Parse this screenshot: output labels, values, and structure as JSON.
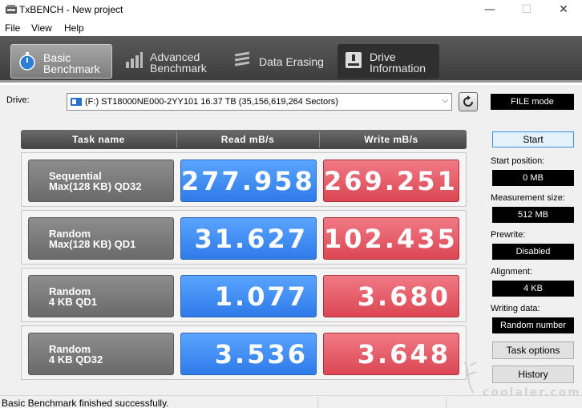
{
  "window": {
    "title": "TxBENCH - New project",
    "minimize": "—",
    "maximize": "☐",
    "close": "✕"
  },
  "menu": [
    "File",
    "View",
    "Help"
  ],
  "ribbon": {
    "tabs": [
      {
        "label": "Basic\nBenchmark",
        "icon": "stopwatch-icon",
        "active": true
      },
      {
        "label": "Advanced\nBenchmark",
        "icon": "bar-chart-icon",
        "active": false
      },
      {
        "label": "Data Erasing",
        "icon": "eraser-icon",
        "active": false
      },
      {
        "label": "Drive\nInformation",
        "icon": "drive-info-icon",
        "active": false
      }
    ]
  },
  "drive": {
    "label": "Drive:",
    "selected": "(F:) ST18000NE000-2YY101  16.37 TB (35,156,619,264 Sectors)",
    "mode": "FILE mode"
  },
  "table": {
    "headers": [
      "Task name",
      "Read mB/s",
      "Write mB/s"
    ],
    "rows": [
      {
        "task_line1": "Sequential",
        "task_line2": "Max(128 KB) QD32",
        "read": "277.958",
        "write": "269.251"
      },
      {
        "task_line1": "Random",
        "task_line2": "Max(128 KB) QD1",
        "read": "31.627",
        "write": "102.435"
      },
      {
        "task_line1": "Random",
        "task_line2": "4 KB QD1",
        "read": "1.077",
        "write": "3.680"
      },
      {
        "task_line1": "Random",
        "task_line2": "4 KB QD32",
        "read": "3.536",
        "write": "3.648"
      }
    ]
  },
  "side": {
    "start": "Start",
    "start_position_label": "Start position:",
    "start_position": "0 MB",
    "measurement_size_label": "Measurement size:",
    "measurement_size": "512 MB",
    "prewrite_label": "Prewrite:",
    "prewrite": "Disabled",
    "alignment_label": "Alignment:",
    "alignment": "4 KB",
    "writing_data_label": "Writing data:",
    "writing_data": "Random number",
    "task_options": "Task options",
    "history": "History"
  },
  "status": {
    "text": "Basic Benchmark finished successfully."
  },
  "watermark": "coolaler.com",
  "colors": {
    "read_tile": "#2f7be8",
    "write_tile": "#db4653",
    "task_tile": "#7a7a7a",
    "ribbon": "#444444",
    "value_box": "#000000"
  }
}
